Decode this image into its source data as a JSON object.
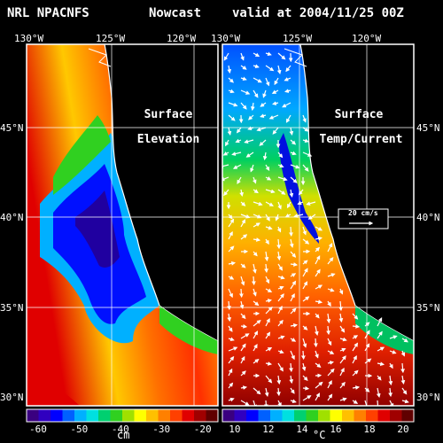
{
  "header": {
    "model": "NRL NPACNFS",
    "mode": "Nowcast",
    "valid": "valid at 2004/11/25 00Z"
  },
  "map": {
    "lon_ticks": [
      "130°W",
      "125°W",
      "120°W"
    ],
    "lat_ticks": [
      "45°N",
      "40°N",
      "35°N",
      "30°N"
    ]
  },
  "panels": {
    "left": {
      "title_1": "Surface",
      "title_2": "Elevation",
      "unit": "cm",
      "colorbar_ticks": [
        "-60",
        "-50",
        "-40",
        "-30",
        "-20"
      ]
    },
    "right": {
      "title_1": "Surface",
      "title_2": "Temp/Current",
      "unit": "°C",
      "colorbar_ticks": [
        "10",
        "12",
        "14",
        "16",
        "18",
        "20"
      ],
      "vector_scale_label": "20 cm/s"
    }
  },
  "colors": {
    "coast": "#ffffff",
    "land": "#000000",
    "palette": [
      "#3a0080",
      "#3000c0",
      "#0000ff",
      "#0060ff",
      "#00b0ff",
      "#00e0e0",
      "#00d070",
      "#30d020",
      "#a0e000",
      "#ffff00",
      "#ffc000",
      "#ff8000",
      "#ff4000",
      "#e00000",
      "#a00000",
      "#600000"
    ]
  }
}
